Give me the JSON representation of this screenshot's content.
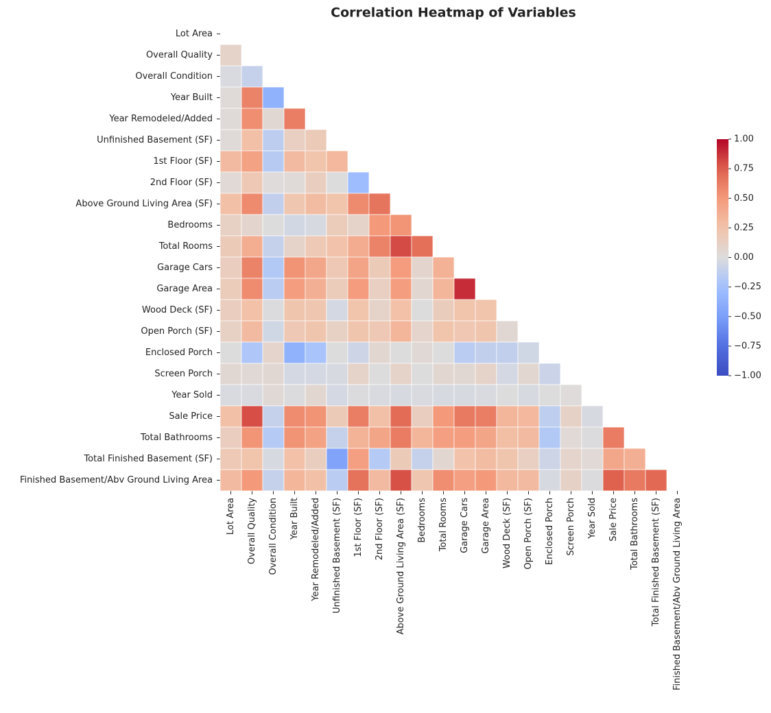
{
  "chart_data": {
    "type": "heatmap",
    "title": "Correlation Heatmap of Variables",
    "categories": [
      "Lot Area",
      "Overall Quality",
      "Overall Condition",
      "Year Built",
      "Year Remodeled/Added",
      "Unfinished Basement (SF)",
      "1st Floor (SF)",
      "2nd Floor (SF)",
      "Above Ground Living Area (SF)",
      "Bedrooms",
      "Total Rooms",
      "Garage Cars",
      "Garage Area",
      "Wood Deck (SF)",
      "Open Porch (SF)",
      "Enclosed Porch",
      "Screen Porch",
      "Year Sold",
      "Sale Price",
      "Total Bathrooms",
      "Total Finished Basement (SF)",
      "Finished Basement/Abv Ground Living Area"
    ],
    "colormap": "coolwarm",
    "clim": [
      -1,
      1
    ],
    "cticks": [
      {
        "value": -1,
        "label": "−1.00"
      },
      {
        "value": -0.75,
        "label": "−0.75"
      },
      {
        "value": -0.5,
        "label": "−0.50"
      },
      {
        "value": -0.25,
        "label": "−0.25"
      },
      {
        "value": 0,
        "label": "0.00"
      },
      {
        "value": 0.25,
        "label": "0.25"
      },
      {
        "value": 0.5,
        "label": "0.50"
      },
      {
        "value": 0.75,
        "label": "0.75"
      },
      {
        "value": 1,
        "label": "1.00"
      }
    ],
    "values": [
      [
        null,
        null,
        null,
        null,
        null,
        null,
        null,
        null,
        null,
        null,
        null,
        null,
        null,
        null,
        null,
        null,
        null,
        null,
        null,
        null,
        null,
        null
      ],
      [
        0.1,
        null,
        null,
        null,
        null,
        null,
        null,
        null,
        null,
        null,
        null,
        null,
        null,
        null,
        null,
        null,
        null,
        null,
        null,
        null,
        null,
        null
      ],
      [
        -0.02,
        -0.1,
        null,
        null,
        null,
        null,
        null,
        null,
        null,
        null,
        null,
        null,
        null,
        null,
        null,
        null,
        null,
        null,
        null,
        null,
        null,
        null
      ],
      [
        0.02,
        0.6,
        -0.37,
        null,
        null,
        null,
        null,
        null,
        null,
        null,
        null,
        null,
        null,
        null,
        null,
        null,
        null,
        null,
        null,
        null,
        null,
        null
      ],
      [
        0.02,
        0.55,
        0.05,
        0.62,
        null,
        null,
        null,
        null,
        null,
        null,
        null,
        null,
        null,
        null,
        null,
        null,
        null,
        null,
        null,
        null,
        null,
        null
      ],
      [
        0.02,
        0.27,
        -0.14,
        0.13,
        0.18,
        null,
        null,
        null,
        null,
        null,
        null,
        null,
        null,
        null,
        null,
        null,
        null,
        null,
        null,
        null,
        null,
        null
      ],
      [
        0.3,
        0.45,
        -0.16,
        0.3,
        0.24,
        0.32,
        null,
        null,
        null,
        null,
        null,
        null,
        null,
        null,
        null,
        null,
        null,
        null,
        null,
        null,
        null,
        null
      ],
      [
        0.03,
        0.2,
        0.01,
        0.02,
        0.14,
        0.0,
        -0.28,
        null,
        null,
        null,
        null,
        null,
        null,
        null,
        null,
        null,
        null,
        null,
        null,
        null,
        null,
        null
      ],
      [
        0.27,
        0.57,
        -0.12,
        0.22,
        0.29,
        0.24,
        0.57,
        0.66,
        null,
        null,
        null,
        null,
        null,
        null,
        null,
        null,
        null,
        null,
        null,
        null,
        null,
        null
      ],
      [
        0.12,
        0.07,
        0.0,
        -0.05,
        -0.03,
        0.17,
        0.1,
        0.5,
        0.52,
        null,
        null,
        null,
        null,
        null,
        null,
        null,
        null,
        null,
        null,
        null,
        null,
        null
      ],
      [
        0.18,
        0.38,
        -0.1,
        0.1,
        0.19,
        0.25,
        0.39,
        0.6,
        0.81,
        0.68,
        null,
        null,
        null,
        null,
        null,
        null,
        null,
        null,
        null,
        null,
        null,
        null
      ],
      [
        0.15,
        0.6,
        -0.18,
        0.53,
        0.42,
        0.2,
        0.44,
        0.18,
        0.49,
        0.07,
        0.36,
        null,
        null,
        null,
        null,
        null,
        null,
        null,
        null,
        null,
        null,
        null
      ],
      [
        0.17,
        0.56,
        -0.15,
        0.48,
        0.37,
        0.17,
        0.49,
        0.13,
        0.48,
        0.06,
        0.33,
        0.89,
        null,
        null,
        null,
        null,
        null,
        null,
        null,
        null,
        null,
        null
      ],
      [
        0.15,
        0.26,
        -0.01,
        0.23,
        0.22,
        -0.04,
        0.24,
        0.1,
        0.26,
        0.0,
        0.16,
        0.24,
        0.24,
        null,
        null,
        null,
        null,
        null,
        null,
        null,
        null,
        null
      ],
      [
        0.12,
        0.3,
        -0.06,
        0.2,
        0.23,
        0.12,
        0.23,
        0.2,
        0.33,
        0.08,
        0.24,
        0.21,
        0.23,
        0.05,
        null,
        null,
        null,
        null,
        null,
        null,
        null,
        null
      ],
      [
        0.0,
        -0.2,
        0.08,
        -0.37,
        -0.22,
        0.0,
        -0.07,
        0.06,
        0.0,
        0.04,
        0.0,
        -0.15,
        -0.12,
        -0.12,
        -0.06,
        null,
        null,
        null,
        null,
        null,
        null,
        null
      ],
      [
        0.05,
        0.04,
        0.05,
        -0.04,
        -0.04,
        -0.03,
        0.1,
        0.0,
        0.1,
        0.0,
        0.06,
        0.05,
        0.09,
        -0.04,
        0.06,
        -0.08,
        null,
        null,
        null,
        null,
        null,
        null
      ],
      [
        -0.02,
        -0.02,
        0.04,
        -0.01,
        0.06,
        -0.04,
        -0.01,
        -0.02,
        -0.03,
        -0.02,
        -0.03,
        -0.03,
        -0.02,
        0.0,
        -0.03,
        0.0,
        0.01,
        null,
        null,
        null,
        null,
        null
      ],
      [
        0.27,
        0.8,
        -0.1,
        0.56,
        0.53,
        0.18,
        0.62,
        0.27,
        0.7,
        0.14,
        0.5,
        0.64,
        0.62,
        0.33,
        0.32,
        -0.13,
        0.11,
        -0.03,
        null,
        null,
        null,
        null
      ],
      [
        0.15,
        0.52,
        -0.17,
        0.53,
        0.45,
        -0.1,
        0.35,
        0.43,
        0.63,
        0.33,
        0.47,
        0.48,
        0.43,
        0.28,
        0.3,
        -0.18,
        0.03,
        -0.01,
        0.63,
        null,
        null,
        null
      ],
      [
        0.19,
        0.24,
        -0.03,
        0.26,
        0.14,
        -0.47,
        0.47,
        -0.17,
        0.18,
        -0.1,
        0.06,
        0.25,
        0.29,
        0.23,
        0.13,
        -0.07,
        0.08,
        0.03,
        0.42,
        0.37,
        null,
        null
      ],
      [
        0.3,
        0.5,
        -0.1,
        0.33,
        0.27,
        -0.15,
        0.67,
        0.3,
        0.79,
        0.22,
        0.55,
        0.47,
        0.5,
        0.31,
        0.3,
        -0.03,
        0.11,
        -0.01,
        0.74,
        0.64,
        0.71,
        null
      ]
    ]
  }
}
